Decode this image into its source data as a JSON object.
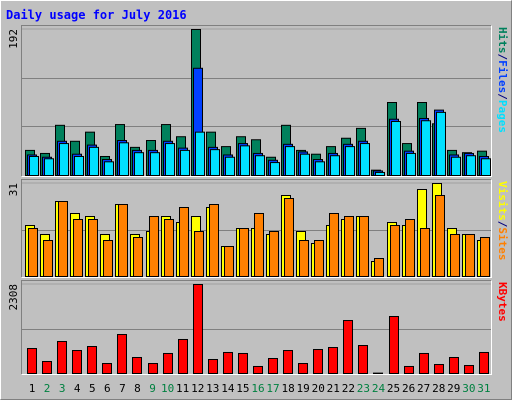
{
  "title": "Daily usage for July 2016",
  "separator": "/",
  "chart_data": [
    {
      "type": "bar",
      "ylim": [
        0,
        192
      ],
      "yticks": [
        192
      ],
      "grid_divisions": 3,
      "series": [
        {
          "name": "Hits",
          "color": "#00805C",
          "values": [
            33,
            29,
            66,
            45,
            57,
            25,
            67,
            37,
            46,
            67,
            51,
            192,
            57,
            38,
            51,
            47,
            24,
            66,
            33,
            28,
            38,
            49,
            62,
            7,
            96,
            42,
            96,
            68,
            33,
            30,
            32
          ]
        },
        {
          "name": "Files",
          "color": "#0040FF",
          "values": [
            27,
            24,
            45,
            28,
            40,
            21,
            46,
            33,
            33,
            45,
            36,
            141,
            37,
            27,
            42,
            29,
            20,
            41,
            31,
            21,
            29,
            41,
            45,
            6,
            74,
            32,
            75,
            86,
            27,
            29,
            25
          ]
        },
        {
          "name": "Pages",
          "color": "#00E0FF",
          "values": [
            25,
            22,
            42,
            25,
            37,
            18,
            43,
            30,
            30,
            42,
            33,
            57,
            34,
            24,
            39,
            26,
            17,
            38,
            28,
            18,
            26,
            38,
            42,
            4,
            71,
            29,
            72,
            83,
            24,
            26,
            22
          ]
        }
      ]
    },
    {
      "type": "bar",
      "ylim": [
        0,
        31
      ],
      "yticks": [
        31
      ],
      "grid_divisions": 2,
      "series": [
        {
          "name": "Visits",
          "color": "#FFFF00",
          "values": [
            17,
            14,
            25,
            21,
            20,
            14,
            24,
            14,
            15,
            20,
            18,
            20,
            23,
            10,
            16,
            16,
            14,
            27,
            15,
            11,
            17,
            19,
            20,
            5,
            18,
            17,
            29,
            31,
            16,
            14,
            12
          ]
        },
        {
          "name": "Sites",
          "color": "#FF8000",
          "values": [
            16,
            12,
            25,
            19,
            19,
            12,
            24,
            13,
            20,
            19,
            23,
            15,
            24,
            10,
            16,
            21,
            15,
            26,
            12,
            12,
            21,
            20,
            20,
            6,
            17,
            19,
            16,
            27,
            14,
            14,
            13
          ]
        }
      ]
    },
    {
      "type": "bar",
      "ylim": [
        0,
        2308
      ],
      "yticks": [
        2308
      ],
      "grid_divisions": 2,
      "categories": [
        "1",
        "2",
        "3",
        "4",
        "5",
        "6",
        "7",
        "8",
        "9",
        "10",
        "11",
        "12",
        "13",
        "14",
        "15",
        "16",
        "17",
        "18",
        "19",
        "20",
        "21",
        "22",
        "23",
        "24",
        "25",
        "26",
        "27",
        "28",
        "29",
        "30",
        "31"
      ],
      "series": [
        {
          "name": "KBytes",
          "color": "#FF0000",
          "values": [
            648,
            311,
            830,
            596,
            700,
            259,
            1011,
            415,
            259,
            519,
            882,
            2308,
            363,
            545,
            519,
            182,
            389,
            596,
            259,
            622,
            674,
            1374,
            726,
            10,
            1478,
            182,
            519,
            233,
            415,
            207,
            545
          ]
        }
      ]
    }
  ]
}
